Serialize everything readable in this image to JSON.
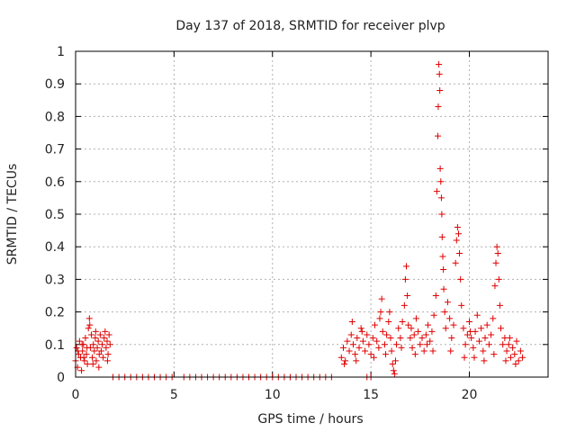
{
  "chart_data": {
    "type": "scatter",
    "title": "Day 137 of 2018, SRMTID for receiver plvp",
    "xlabel": "GPS time / hours",
    "ylabel": "SRMTID / TECUs",
    "xlim": [
      0,
      24
    ],
    "ylim": [
      0,
      1
    ],
    "x_ticks": [
      0,
      5,
      10,
      15,
      20
    ],
    "y_ticks": [
      0,
      0.1,
      0.2,
      0.3,
      0.4,
      0.5,
      0.6,
      0.7,
      0.8,
      0.9,
      1
    ],
    "x_tick_labels": [
      "0",
      "5",
      "10",
      "15",
      "20"
    ],
    "y_tick_labels": [
      "0",
      "0.1",
      "0.2",
      "0.3",
      "0.4",
      "0.5",
      "0.6",
      "0.7",
      "0.8",
      "0.9",
      "1"
    ],
    "grid": true,
    "marker": "plus",
    "color": "#e00000",
    "series": [
      {
        "name": "SRMTID",
        "points": [
          [
            0.0,
            0.05
          ],
          [
            0.05,
            0.09
          ],
          [
            0.1,
            0.03
          ],
          [
            0.15,
            0.07
          ],
          [
            0.2,
            0.11
          ],
          [
            0.25,
            0.06
          ],
          [
            0.3,
            0.02
          ],
          [
            0.35,
            0.08
          ],
          [
            0.4,
            0.1
          ],
          [
            0.45,
            0.05
          ],
          [
            0.5,
            0.12
          ],
          [
            0.55,
            0.07
          ],
          [
            0.6,
            0.04
          ],
          [
            0.65,
            0.15
          ],
          [
            0.7,
            0.18
          ],
          [
            0.72,
            0.16
          ],
          [
            0.75,
            0.09
          ],
          [
            0.8,
            0.13
          ],
          [
            0.85,
            0.06
          ],
          [
            0.9,
            0.1
          ],
          [
            0.95,
            0.08
          ],
          [
            1.0,
            0.12
          ],
          [
            1.05,
            0.05
          ],
          [
            1.1,
            0.09
          ],
          [
            1.15,
            0.11
          ],
          [
            1.2,
            0.07
          ],
          [
            1.25,
            0.13
          ],
          [
            1.3,
            0.08
          ],
          [
            1.35,
            0.1
          ],
          [
            1.4,
            0.06
          ],
          [
            1.45,
            0.12
          ],
          [
            1.5,
            0.14
          ],
          [
            1.55,
            0.09
          ],
          [
            1.6,
            0.11
          ],
          [
            1.65,
            0.07
          ],
          [
            1.7,
            0.13
          ],
          [
            1.75,
            0.1
          ],
          [
            0.12,
            0.08
          ],
          [
            0.33,
            0.1
          ],
          [
            0.58,
            0.09
          ],
          [
            0.88,
            0.04
          ],
          [
            1.18,
            0.03
          ],
          [
            1.62,
            0.05
          ],
          [
            0.42,
            0.06
          ],
          [
            1.02,
            0.14
          ],
          [
            1.9,
            0.0
          ],
          [
            2.2,
            0.0
          ],
          [
            2.5,
            0.0
          ],
          [
            2.8,
            0.0
          ],
          [
            3.1,
            0.0
          ],
          [
            3.4,
            0.0
          ],
          [
            3.7,
            0.0
          ],
          [
            4.0,
            0.0
          ],
          [
            4.3,
            0.0
          ],
          [
            4.6,
            0.0
          ],
          [
            4.9,
            0.0
          ],
          [
            5.5,
            0.0
          ],
          [
            5.8,
            0.0
          ],
          [
            6.1,
            0.0
          ],
          [
            6.4,
            0.0
          ],
          [
            6.7,
            0.0
          ],
          [
            7.0,
            0.0
          ],
          [
            7.3,
            0.0
          ],
          [
            7.6,
            0.0
          ],
          [
            7.9,
            0.0
          ],
          [
            8.2,
            0.0
          ],
          [
            8.5,
            0.0
          ],
          [
            8.8,
            0.0
          ],
          [
            9.1,
            0.0
          ],
          [
            9.4,
            0.0
          ],
          [
            9.7,
            0.0
          ],
          [
            10.0,
            0.0
          ],
          [
            10.3,
            0.0
          ],
          [
            10.6,
            0.0
          ],
          [
            10.9,
            0.0
          ],
          [
            11.2,
            0.0
          ],
          [
            11.5,
            0.0
          ],
          [
            11.8,
            0.0
          ],
          [
            12.1,
            0.0
          ],
          [
            12.4,
            0.0
          ],
          [
            12.7,
            0.0
          ],
          [
            13.0,
            0.0
          ],
          [
            14.8,
            0.0
          ],
          [
            15.0,
            0.0
          ],
          [
            13.5,
            0.06
          ],
          [
            13.6,
            0.09
          ],
          [
            13.7,
            0.05
          ],
          [
            13.8,
            0.11
          ],
          [
            13.9,
            0.08
          ],
          [
            14.0,
            0.13
          ],
          [
            14.05,
            0.17
          ],
          [
            14.1,
            0.1
          ],
          [
            14.2,
            0.07
          ],
          [
            14.3,
            0.12
          ],
          [
            14.4,
            0.09
          ],
          [
            14.5,
            0.15
          ],
          [
            14.6,
            0.11
          ],
          [
            14.7,
            0.08
          ],
          [
            14.8,
            0.13
          ],
          [
            14.9,
            0.1
          ],
          [
            15.0,
            0.07
          ],
          [
            15.1,
            0.12
          ],
          [
            15.2,
            0.16
          ],
          [
            15.3,
            0.11
          ],
          [
            15.4,
            0.09
          ],
          [
            15.5,
            0.2
          ],
          [
            15.55,
            0.24
          ],
          [
            15.6,
            0.14
          ],
          [
            15.7,
            0.1
          ],
          [
            15.8,
            0.13
          ],
          [
            15.9,
            0.17
          ],
          [
            15.95,
            0.2
          ],
          [
            16.0,
            0.12
          ],
          [
            16.05,
            0.08
          ],
          [
            16.1,
            0.04
          ],
          [
            16.15,
            0.02
          ],
          [
            16.2,
            0.01
          ],
          [
            16.25,
            0.05
          ],
          [
            16.3,
            0.1
          ],
          [
            16.4,
            0.15
          ],
          [
            16.5,
            0.12
          ],
          [
            16.6,
            0.17
          ],
          [
            16.7,
            0.22
          ],
          [
            16.75,
            0.3
          ],
          [
            16.8,
            0.34
          ],
          [
            16.85,
            0.25
          ],
          [
            16.9,
            0.16
          ],
          [
            17.0,
            0.12
          ],
          [
            17.1,
            0.09
          ],
          [
            17.2,
            0.13
          ],
          [
            17.3,
            0.18
          ],
          [
            17.4,
            0.14
          ],
          [
            17.5,
            0.1
          ],
          [
            17.6,
            0.12
          ],
          [
            17.7,
            0.08
          ],
          [
            17.8,
            0.13
          ],
          [
            17.9,
            0.16
          ],
          [
            18.0,
            0.11
          ],
          [
            18.1,
            0.14
          ],
          [
            18.2,
            0.19
          ],
          [
            18.3,
            0.25
          ],
          [
            18.35,
            0.57
          ],
          [
            18.4,
            0.74
          ],
          [
            18.42,
            0.83
          ],
          [
            18.45,
            0.96
          ],
          [
            18.48,
            0.93
          ],
          [
            18.5,
            0.88
          ],
          [
            18.52,
            0.64
          ],
          [
            18.55,
            0.6
          ],
          [
            18.58,
            0.55
          ],
          [
            18.6,
            0.5
          ],
          [
            18.62,
            0.43
          ],
          [
            18.65,
            0.37
          ],
          [
            18.68,
            0.33
          ],
          [
            18.7,
            0.27
          ],
          [
            18.75,
            0.2
          ],
          [
            18.8,
            0.15
          ],
          [
            18.9,
            0.23
          ],
          [
            19.0,
            0.18
          ],
          [
            19.1,
            0.12
          ],
          [
            19.2,
            0.16
          ],
          [
            19.3,
            0.35
          ],
          [
            19.35,
            0.42
          ],
          [
            19.4,
            0.46
          ],
          [
            19.45,
            0.44
          ],
          [
            19.5,
            0.38
          ],
          [
            19.55,
            0.3
          ],
          [
            19.6,
            0.22
          ],
          [
            19.7,
            0.15
          ],
          [
            19.8,
            0.1
          ],
          [
            19.9,
            0.13
          ],
          [
            20.0,
            0.17
          ],
          [
            20.1,
            0.12
          ],
          [
            20.2,
            0.09
          ],
          [
            20.3,
            0.14
          ],
          [
            20.4,
            0.19
          ],
          [
            20.5,
            0.11
          ],
          [
            20.6,
            0.15
          ],
          [
            20.7,
            0.08
          ],
          [
            20.8,
            0.12
          ],
          [
            20.9,
            0.16
          ],
          [
            21.0,
            0.1
          ],
          [
            21.1,
            0.13
          ],
          [
            21.2,
            0.18
          ],
          [
            21.3,
            0.28
          ],
          [
            21.35,
            0.35
          ],
          [
            21.4,
            0.4
          ],
          [
            21.45,
            0.38
          ],
          [
            21.5,
            0.3
          ],
          [
            21.55,
            0.22
          ],
          [
            21.6,
            0.15
          ],
          [
            21.7,
            0.1
          ],
          [
            21.8,
            0.12
          ],
          [
            21.9,
            0.08
          ],
          [
            22.0,
            0.1
          ],
          [
            22.1,
            0.06
          ],
          [
            22.2,
            0.09
          ],
          [
            22.3,
            0.07
          ],
          [
            22.4,
            0.11
          ],
          [
            22.5,
            0.05
          ],
          [
            22.6,
            0.08
          ],
          [
            22.7,
            0.06
          ],
          [
            13.65,
            0.04
          ],
          [
            14.25,
            0.05
          ],
          [
            15.15,
            0.06
          ],
          [
            15.75,
            0.07
          ],
          [
            16.55,
            0.09
          ],
          [
            17.25,
            0.07
          ],
          [
            17.85,
            0.1
          ],
          [
            18.15,
            0.08
          ],
          [
            19.05,
            0.08
          ],
          [
            19.75,
            0.06
          ],
          [
            20.25,
            0.06
          ],
          [
            20.75,
            0.05
          ],
          [
            21.25,
            0.07
          ],
          [
            21.85,
            0.05
          ],
          [
            22.35,
            0.04
          ],
          [
            14.55,
            0.14
          ],
          [
            15.45,
            0.18
          ],
          [
            17.05,
            0.15
          ],
          [
            20.05,
            0.14
          ],
          [
            22.05,
            0.12
          ]
        ]
      }
    ]
  }
}
